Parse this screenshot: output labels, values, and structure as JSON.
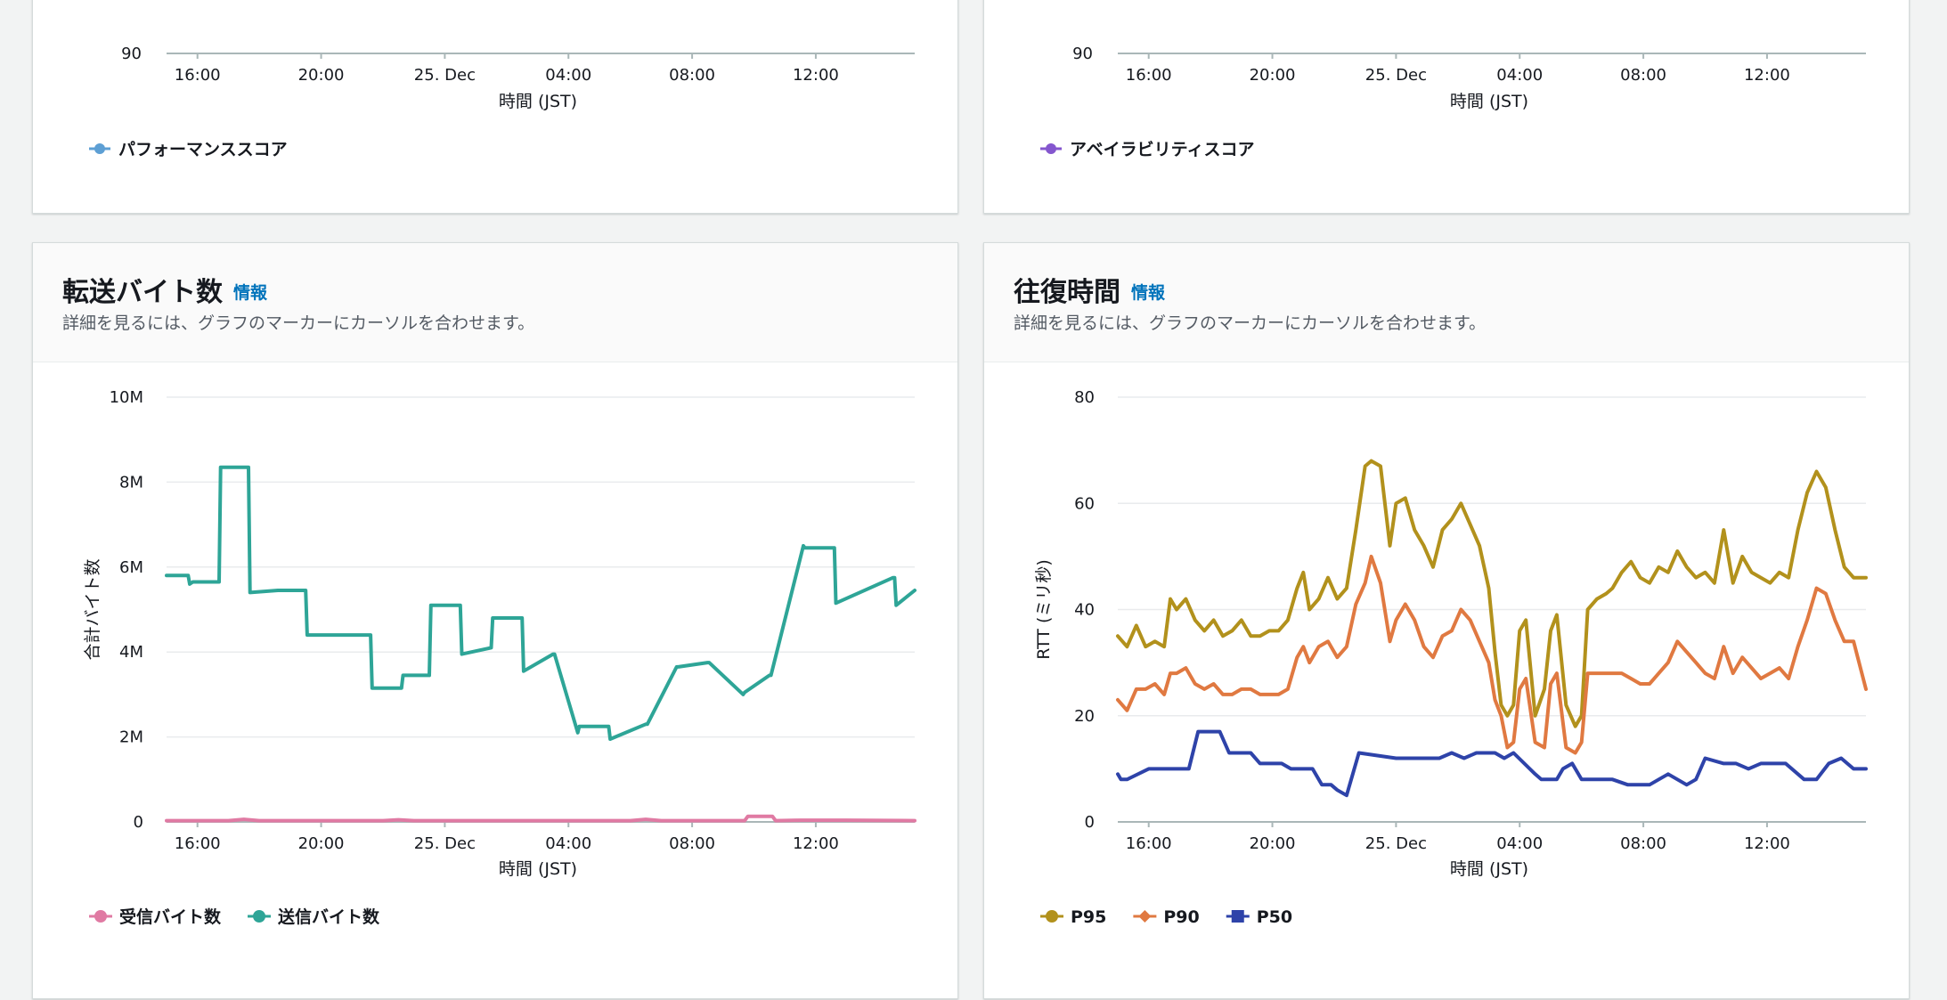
{
  "top_left": {
    "y_tick": "90",
    "x_ticks": [
      "16:00",
      "20:00",
      "25. Dec",
      "04:00",
      "08:00",
      "12:00"
    ],
    "x_label": "時間 (JST)",
    "legend": [
      {
        "label": "パフォーマンススコア",
        "color": "#5d9fd4"
      }
    ]
  },
  "top_right": {
    "y_tick": "90",
    "x_ticks": [
      "16:00",
      "20:00",
      "25. Dec",
      "04:00",
      "08:00",
      "12:00"
    ],
    "x_label": "時間 (JST)",
    "legend": [
      {
        "label": "アベイラビリティスコア",
        "color": "#8456ce"
      }
    ]
  },
  "bytes_panel": {
    "title": "転送バイト数",
    "info": "情報",
    "description": "詳細を見るには、グラフのマーカーにカーソルを合わせます。",
    "chart_data": {
      "type": "line",
      "y_ticks": [
        "0",
        "2M",
        "4M",
        "6M",
        "8M",
        "10M"
      ],
      "ylim": [
        0,
        10000000
      ],
      "ylabel": "合計バイト数",
      "xlabel": "時間 (JST)",
      "x_ticks": [
        "16:00",
        "20:00",
        "25. Dec",
        "04:00",
        "08:00",
        "12:00"
      ],
      "x_tick_hours": [
        16,
        20,
        24,
        28,
        32,
        36
      ],
      "x_range_hours": [
        15,
        39.2
      ],
      "legend_position": "bottom-left",
      "series": [
        {
          "name": "受信バイト数",
          "color": "#e07aa3",
          "x": [
            15.0,
            17.0,
            17.5,
            18.0,
            22.0,
            22.5,
            23.0,
            30.0,
            30.5,
            31.0,
            32.0,
            33.7,
            33.8,
            34.6,
            34.7,
            35.5,
            37.0,
            39.2
          ],
          "y": [
            30000,
            30000,
            60000,
            30000,
            30000,
            50000,
            30000,
            30000,
            60000,
            30000,
            30000,
            30000,
            130000,
            130000,
            30000,
            40000,
            40000,
            30000
          ]
        },
        {
          "name": "送信バイト数",
          "color": "#2ea597",
          "x": [
            15.0,
            15.7,
            15.75,
            15.85,
            16.7,
            16.75,
            17.65,
            17.7,
            18.6,
            18.65,
            18.7,
            19.5,
            19.55,
            20.6,
            20.7,
            21.6,
            21.65,
            22.6,
            22.65,
            23.5,
            23.55,
            23.6,
            24.5,
            24.55,
            25.5,
            25.55,
            25.6,
            26.5,
            26.55,
            27.5,
            27.55,
            28.3,
            28.35,
            29.3,
            29.35,
            30.5,
            30.55,
            31.5,
            31.55,
            32.5,
            32.55,
            33.65,
            33.7,
            34.5,
            34.55,
            35.6,
            35.65,
            36.6,
            36.65,
            38.5,
            38.55,
            38.6,
            39.2
          ],
          "y": [
            5800000,
            5800000,
            5600000,
            5650000,
            5650000,
            8350000,
            8350000,
            5400000,
            5450000,
            5450000,
            5450000,
            5450000,
            4400000,
            4400000,
            4400000,
            4400000,
            3150000,
            3150000,
            3450000,
            3450000,
            5100000,
            5100000,
            5100000,
            3950000,
            4100000,
            4800000,
            4800000,
            4800000,
            3550000,
            3950000,
            3950000,
            2100000,
            2250000,
            2250000,
            1950000,
            2300000,
            2300000,
            3650000,
            3650000,
            3750000,
            3750000,
            3000000,
            3050000,
            3450000,
            3450000,
            6500000,
            6450000,
            6450000,
            5150000,
            5750000,
            5750000,
            5100000,
            5450000
          ]
        }
      ]
    }
  },
  "rtt_panel": {
    "title": "往復時間",
    "info": "情報",
    "description": "詳細を見るには、グラフのマーカーにカーソルを合わせます。",
    "chart_data": {
      "type": "line",
      "y_ticks": [
        "0",
        "20",
        "40",
        "60",
        "80"
      ],
      "ylim": [
        0,
        80
      ],
      "ylabel": "RTT (ミリ秒)",
      "xlabel": "時間 (JST)",
      "x_ticks": [
        "16:00",
        "20:00",
        "25. Dec",
        "04:00",
        "08:00",
        "12:00"
      ],
      "x_tick_hours": [
        16,
        20,
        24,
        28,
        32,
        36
      ],
      "x_range_hours": [
        15,
        39.2
      ],
      "legend_position": "bottom-left",
      "series": [
        {
          "name": "P95",
          "color": "#b2911c",
          "marker": "circle",
          "x": [
            15.0,
            15.3,
            15.6,
            15.9,
            16.2,
            16.5,
            16.7,
            16.9,
            17.2,
            17.5,
            17.8,
            18.1,
            18.4,
            18.7,
            19.0,
            19.3,
            19.6,
            19.9,
            20.2,
            20.5,
            20.8,
            21.0,
            21.2,
            21.5,
            21.8,
            22.1,
            22.4,
            22.7,
            23.0,
            23.2,
            23.5,
            23.8,
            24.0,
            24.3,
            24.6,
            24.9,
            25.2,
            25.5,
            25.8,
            26.1,
            26.4,
            26.7,
            27.0,
            27.2,
            27.4,
            27.6,
            27.8,
            28.0,
            28.2,
            28.5,
            28.8,
            29.0,
            29.2,
            29.5,
            29.8,
            30.0,
            30.2,
            30.5,
            30.8,
            31.0,
            31.3,
            31.6,
            31.9,
            32.2,
            32.5,
            32.8,
            33.1,
            33.4,
            33.7,
            34.0,
            34.3,
            34.6,
            34.9,
            35.2,
            35.5,
            35.8,
            36.1,
            36.4,
            36.7,
            37.0,
            37.3,
            37.6,
            37.9,
            38.2,
            38.5,
            38.8,
            39.2
          ],
          "y": [
            35,
            33,
            37,
            33,
            34,
            33,
            42,
            40,
            42,
            38,
            36,
            38,
            35,
            36,
            38,
            35,
            35,
            36,
            36,
            38,
            44,
            47,
            40,
            42,
            46,
            42,
            44,
            55,
            67,
            68,
            67,
            52,
            60,
            61,
            55,
            52,
            48,
            55,
            57,
            60,
            56,
            52,
            44,
            32,
            22,
            20,
            22,
            36,
            38,
            20,
            25,
            36,
            39,
            22,
            18,
            20,
            40,
            42,
            43,
            44,
            47,
            49,
            46,
            45,
            48,
            47,
            51,
            48,
            46,
            47,
            45,
            55,
            45,
            50,
            47,
            46,
            45,
            47,
            46,
            55,
            62,
            66,
            63,
            55,
            48,
            46,
            46
          ]
        },
        {
          "name": "P90",
          "color": "#e07941",
          "marker": "diamond",
          "x": [
            15.0,
            15.3,
            15.6,
            15.9,
            16.2,
            16.5,
            16.7,
            16.9,
            17.2,
            17.5,
            17.8,
            18.1,
            18.4,
            18.7,
            19.0,
            19.3,
            19.6,
            19.9,
            20.2,
            20.5,
            20.8,
            21.0,
            21.2,
            21.5,
            21.8,
            22.1,
            22.4,
            22.7,
            23.0,
            23.2,
            23.5,
            23.8,
            24.0,
            24.3,
            24.6,
            24.9,
            25.2,
            25.5,
            25.8,
            26.1,
            26.4,
            26.7,
            27.0,
            27.2,
            27.4,
            27.6,
            27.8,
            28.0,
            28.2,
            28.5,
            28.8,
            29.0,
            29.2,
            29.5,
            29.8,
            30.0,
            30.2,
            30.5,
            30.8,
            31.0,
            31.3,
            31.6,
            31.9,
            32.2,
            32.5,
            32.8,
            33.1,
            33.4,
            33.7,
            34.0,
            34.3,
            34.6,
            34.9,
            35.2,
            35.5,
            35.8,
            36.1,
            36.4,
            36.7,
            37.0,
            37.3,
            37.6,
            37.9,
            38.2,
            38.5,
            38.8,
            39.2
          ],
          "y": [
            23,
            21,
            25,
            25,
            26,
            24,
            28,
            28,
            29,
            26,
            25,
            26,
            24,
            24,
            25,
            25,
            24,
            24,
            24,
            25,
            31,
            33,
            30,
            33,
            34,
            31,
            33,
            41,
            45,
            50,
            45,
            34,
            38,
            41,
            38,
            33,
            31,
            35,
            36,
            40,
            38,
            34,
            30,
            23,
            20,
            14,
            15,
            25,
            27,
            15,
            14,
            26,
            28,
            14,
            13,
            15,
            28,
            28,
            28,
            28,
            28,
            27,
            26,
            26,
            28,
            30,
            34,
            32,
            30,
            28,
            27,
            33,
            28,
            31,
            29,
            27,
            28,
            29,
            27,
            33,
            38,
            44,
            43,
            38,
            34,
            34,
            25
          ]
        },
        {
          "name": "P50",
          "color": "#2e43a9",
          "marker": "square",
          "x": [
            15.0,
            15.1,
            15.3,
            16.0,
            16.3,
            16.6,
            17.3,
            17.6,
            18.3,
            18.6,
            19.3,
            19.6,
            20.3,
            20.6,
            21.3,
            21.6,
            21.9,
            22.1,
            22.4,
            22.8,
            24.0,
            24.6,
            25.0,
            25.4,
            25.8,
            26.2,
            26.6,
            27.2,
            27.5,
            27.8,
            28.5,
            28.7,
            29.2,
            29.4,
            29.7,
            30.0,
            30.5,
            31.0,
            31.5,
            32.0,
            32.2,
            32.5,
            32.8,
            33.1,
            33.4,
            33.7,
            34.0,
            34.6,
            35.0,
            35.4,
            35.8,
            36.2,
            36.6,
            37.2,
            37.6,
            38.0,
            38.4,
            38.8,
            39.2
          ],
          "y": [
            9,
            8,
            8,
            10,
            10,
            10,
            10,
            17,
            17,
            13,
            13,
            11,
            11,
            10,
            10,
            7,
            7,
            6,
            5,
            13,
            12,
            12,
            12,
            12,
            13,
            12,
            13,
            13,
            12,
            13,
            9,
            8,
            8,
            10,
            11,
            8,
            8,
            8,
            7,
            7,
            7,
            8,
            9,
            8,
            7,
            8,
            12,
            11,
            11,
            10,
            11,
            11,
            11,
            8,
            8,
            11,
            12,
            10,
            10
          ]
        }
      ]
    }
  }
}
